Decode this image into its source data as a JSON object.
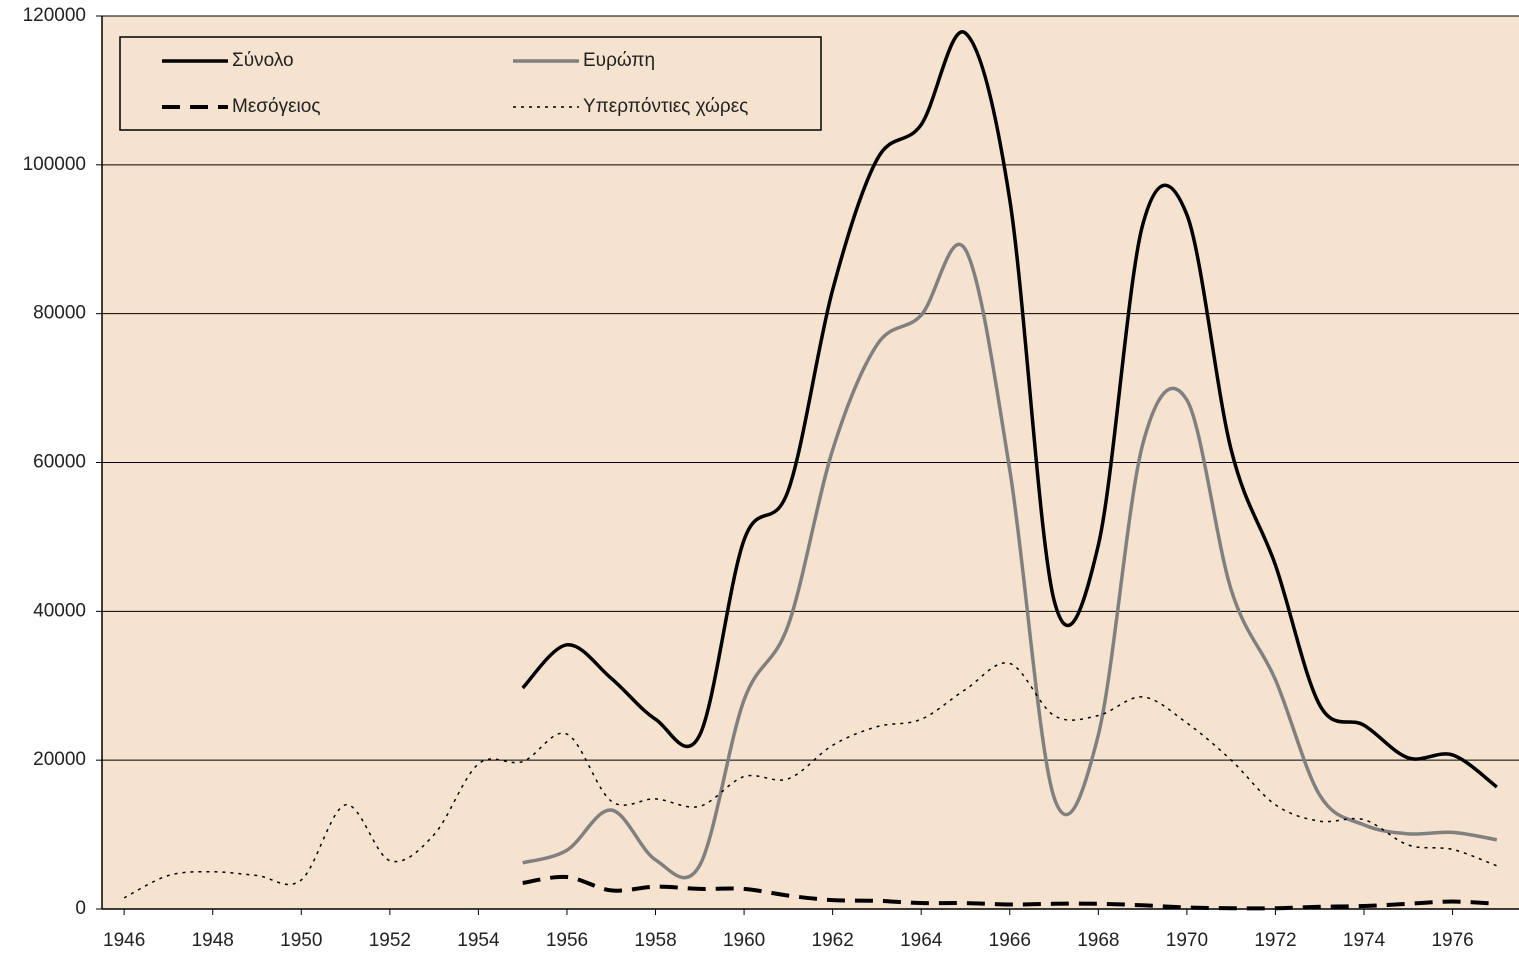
{
  "chart_data": {
    "type": "line",
    "x": [
      1946,
      1947,
      1948,
      1949,
      1950,
      1951,
      1952,
      1953,
      1954,
      1955,
      1956,
      1957,
      1958,
      1959,
      1960,
      1961,
      1962,
      1963,
      1964,
      1965,
      1966,
      1967,
      1968,
      1969,
      1970,
      1971,
      1972,
      1973,
      1974,
      1975,
      1976,
      1977
    ],
    "xlim": [
      1945.5,
      1977.5
    ],
    "xticks": [
      1946,
      1948,
      1950,
      1952,
      1954,
      1956,
      1958,
      1960,
      1962,
      1964,
      1966,
      1968,
      1970,
      1972,
      1974,
      1976
    ],
    "ylim": [
      0,
      120000
    ],
    "yticks": [
      0,
      20000,
      40000,
      60000,
      80000,
      100000,
      120000
    ],
    "grid": true,
    "series": [
      {
        "name": "Σύνολο",
        "color": "#000000",
        "style": "solid",
        "values": [
          null,
          null,
          null,
          null,
          null,
          null,
          null,
          null,
          null,
          29700,
          35500,
          31000,
          25500,
          23400,
          49600,
          56300,
          83200,
          100700,
          105400,
          117700,
          95300,
          41500,
          48900,
          91900,
          93300,
          61700,
          46200,
          27400,
          24700,
          20300,
          20700,
          16400
        ]
      },
      {
        "name": "Ευρώπη",
        "color": "#808080",
        "style": "solid",
        "values": [
          null,
          null,
          null,
          null,
          null,
          null,
          null,
          null,
          null,
          6200,
          7900,
          13300,
          6600,
          5900,
          28100,
          38200,
          61700,
          75800,
          79800,
          88600,
          59000,
          15000,
          23400,
          62400,
          68400,
          42900,
          30800,
          15300,
          11300,
          10100,
          10300,
          9300
        ]
      },
      {
        "name": "Μεσόγειος",
        "color": "#000000",
        "style": "dashed",
        "values": [
          null,
          null,
          null,
          null,
          null,
          null,
          null,
          null,
          null,
          3500,
          4300,
          2500,
          3000,
          2700,
          2700,
          1800,
          1200,
          1100,
          800,
          800,
          600,
          700,
          700,
          500,
          200,
          100,
          100,
          300,
          400,
          700,
          1000,
          700
        ]
      },
      {
        "name": "Υπερπόντιες χώρες",
        "color": "#000000",
        "style": "dotted",
        "values": [
          1500,
          4500,
          5000,
          4500,
          3900,
          14000,
          6500,
          10000,
          19500,
          19800,
          23500,
          14500,
          14800,
          13800,
          17800,
          17500,
          22000,
          24500,
          25500,
          29500,
          33000,
          26000,
          26000,
          28500,
          25000,
          20000,
          14000,
          11800,
          12000,
          8600,
          8000,
          5800
        ]
      }
    ]
  }
}
